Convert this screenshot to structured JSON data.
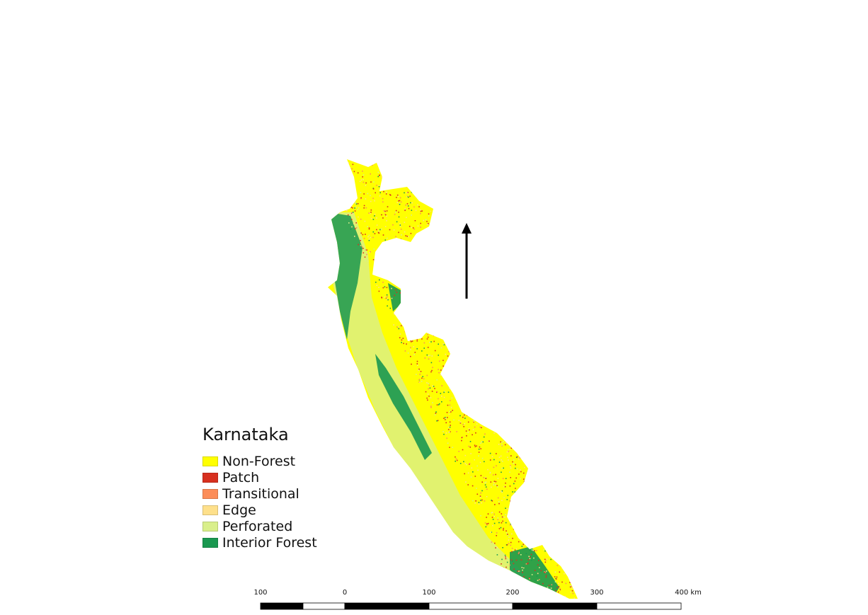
{
  "legend": {
    "title": "Karnataka",
    "items": [
      {
        "label": "Non-Forest",
        "color": "#ffff00"
      },
      {
        "label": "Patch",
        "color": "#d7301f"
      },
      {
        "label": "Transitional",
        "color": "#fc8d59"
      },
      {
        "label": "Edge",
        "color": "#fee08b"
      },
      {
        "label": "Perforated",
        "color": "#d9ef8b"
      },
      {
        "label": "Interior Forest",
        "color": "#1a9850"
      }
    ]
  },
  "north_arrow": {
    "icon": "north-arrow-icon"
  },
  "scale_bar": {
    "labels": [
      "100",
      "0",
      "100",
      "200",
      "300",
      "400 km"
    ]
  }
}
